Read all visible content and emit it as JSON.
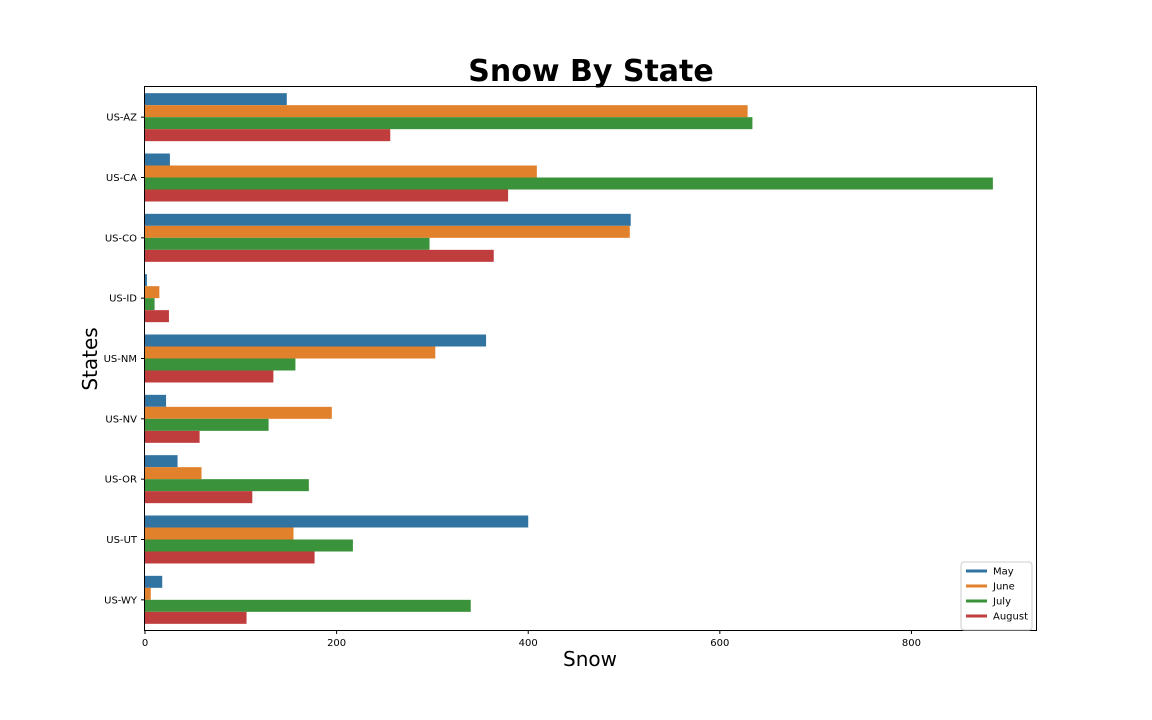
{
  "chart_data": {
    "type": "bar",
    "orientation": "horizontal",
    "title": "Snow By State",
    "xlabel": "Snow",
    "ylabel": "States",
    "xlim": [
      0,
      930
    ],
    "xticks": [
      "0",
      "200",
      "400",
      "600",
      "800"
    ],
    "grid": false,
    "legend_position": "bottom-right",
    "categories": [
      "US-AZ",
      "US-CA",
      "US-CO",
      "US-ID",
      "US-NM",
      "US-NV",
      "US-OR",
      "US-UT",
      "US-WY"
    ],
    "series": [
      {
        "name": "May",
        "color": "#3274a1",
        "values": [
          148,
          26,
          507,
          2,
          356,
          22,
          34,
          400,
          18
        ]
      },
      {
        "name": "June",
        "color": "#e1812c",
        "values": [
          629,
          409,
          506,
          15,
          303,
          195,
          59,
          155,
          6
        ]
      },
      {
        "name": "July",
        "color": "#3a923a",
        "values": [
          634,
          885,
          297,
          10,
          157,
          129,
          171,
          217,
          340
        ]
      },
      {
        "name": "August",
        "color": "#c03d3e",
        "values": [
          256,
          379,
          364,
          25,
          134,
          57,
          112,
          177,
          106
        ]
      }
    ]
  }
}
